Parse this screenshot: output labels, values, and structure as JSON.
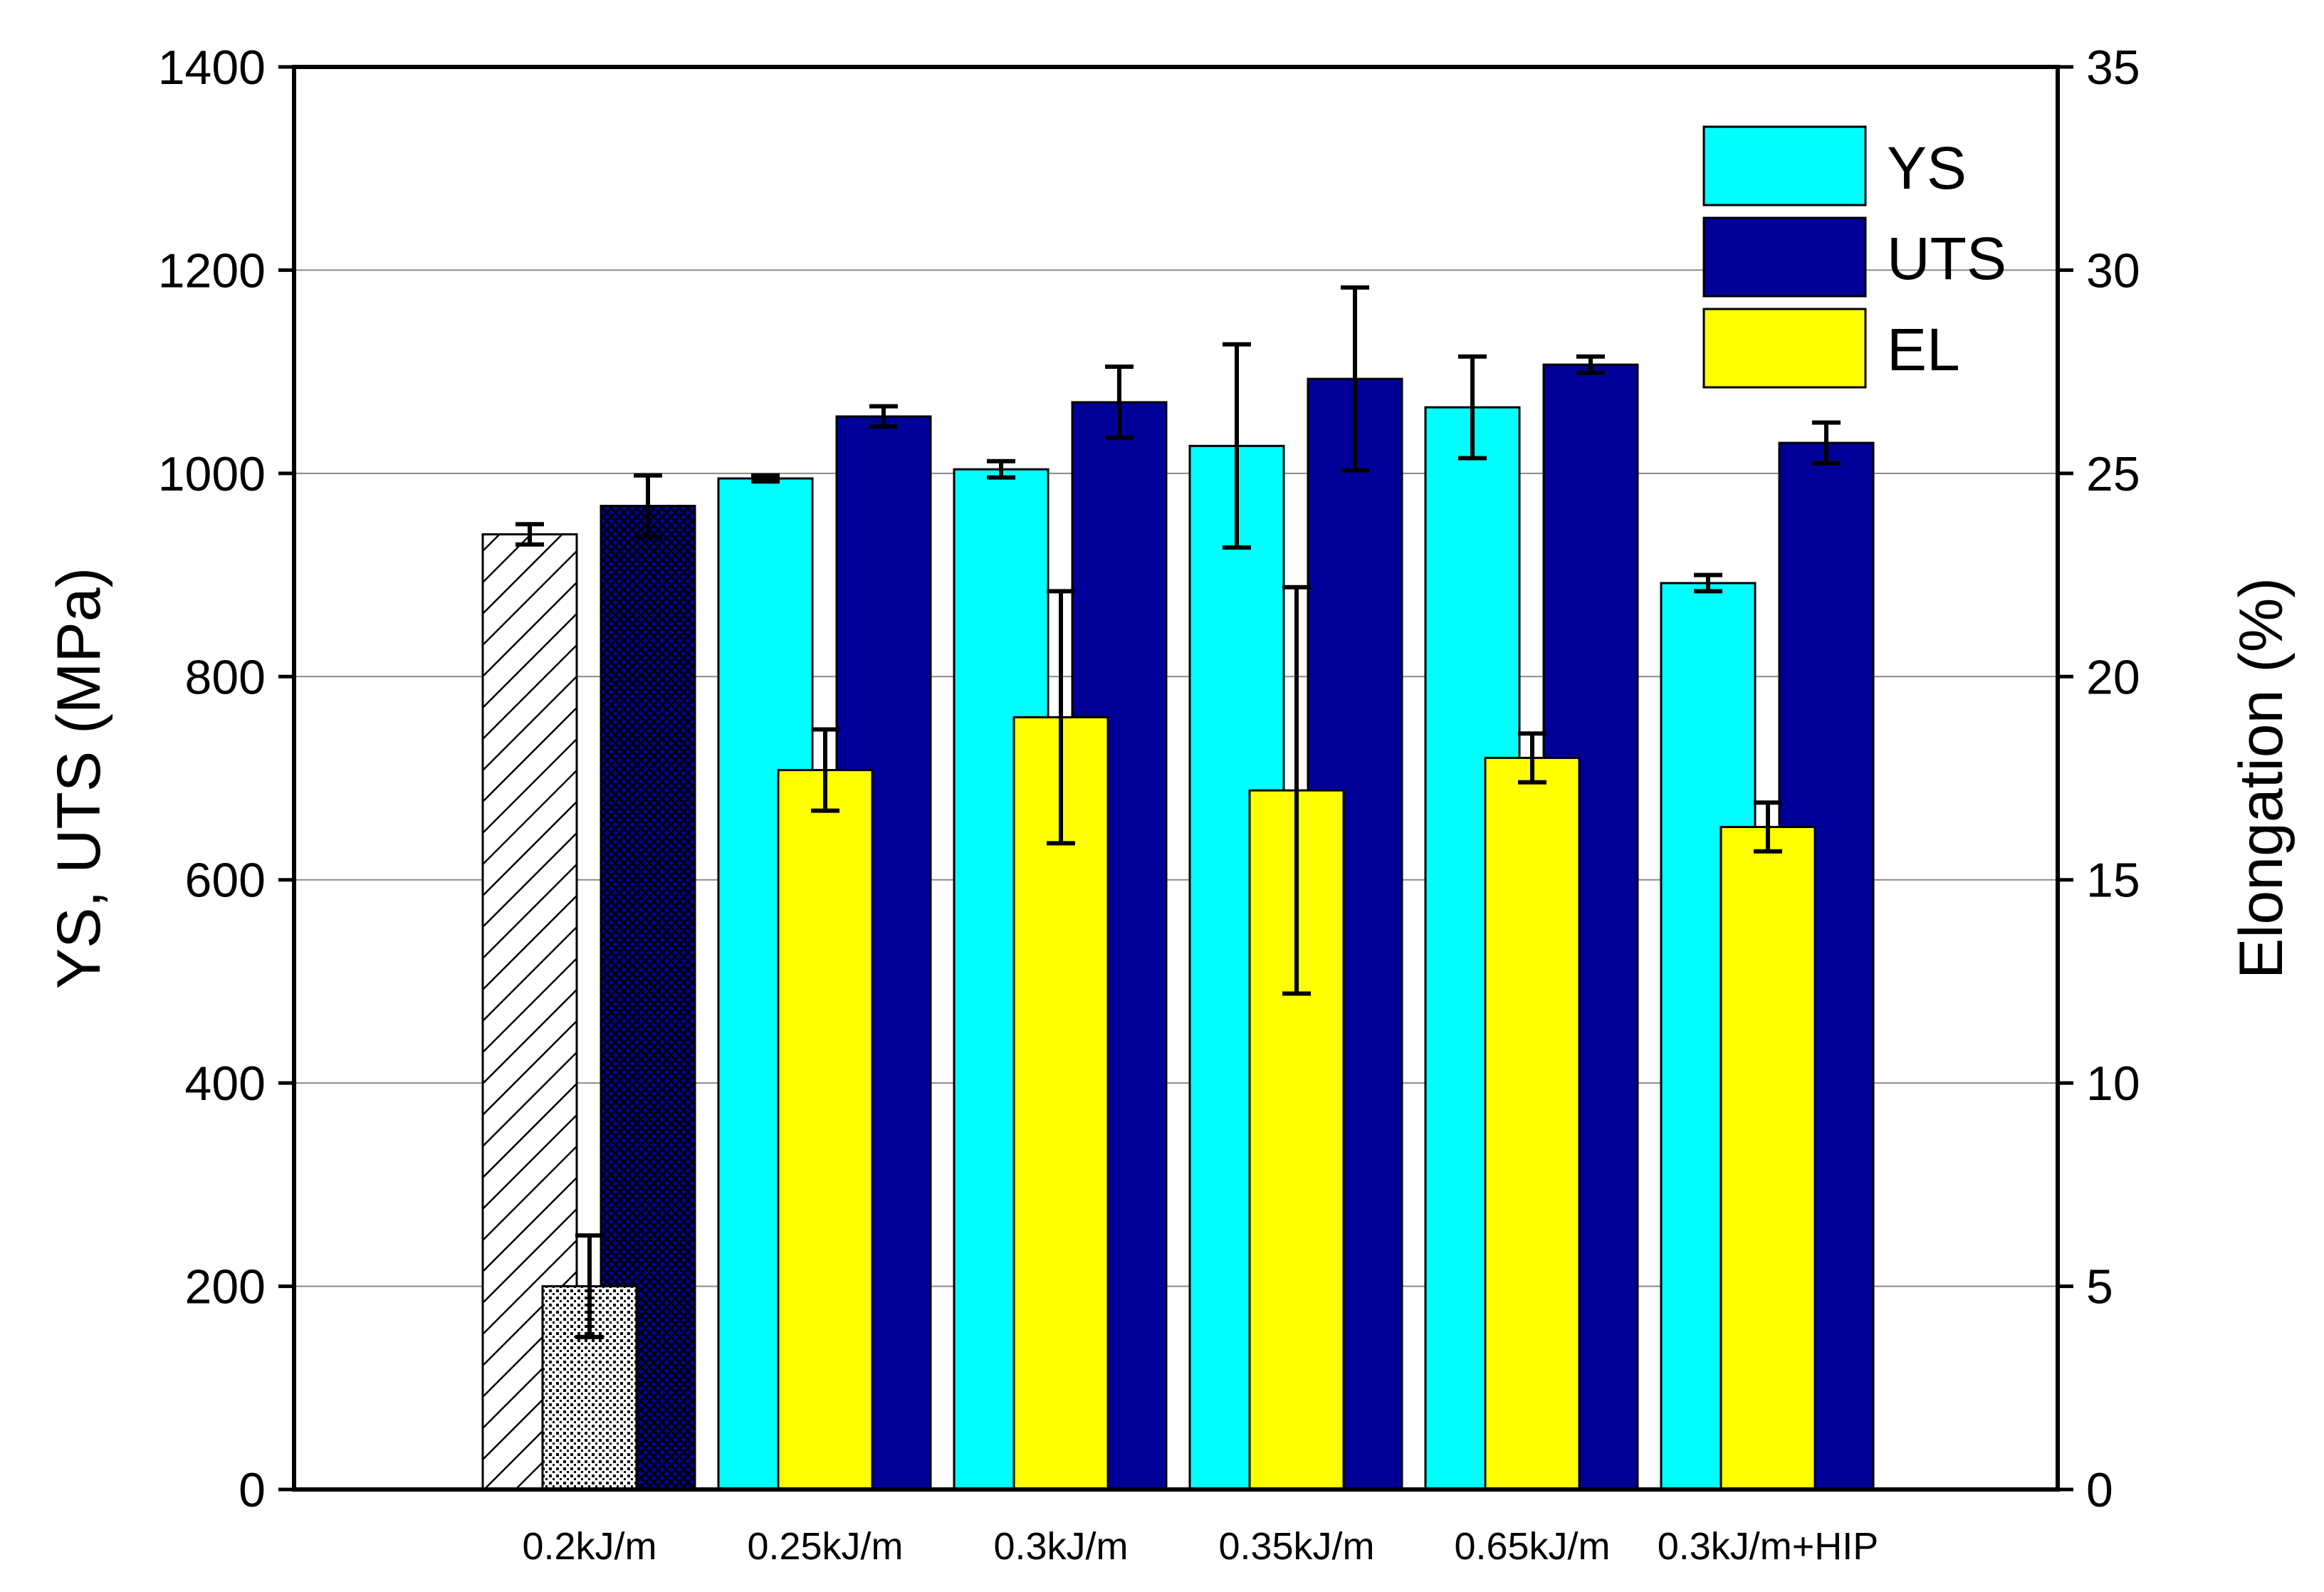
{
  "chart_data": {
    "type": "bar",
    "categories": [
      "0.2kJ/m",
      "0.25kJ/m",
      "0.3kJ/m",
      "0.35kJ/m",
      "0.65kJ/m",
      "0.3kJ/m+HIP"
    ],
    "series": [
      {
        "name": "YS",
        "axis": "left",
        "color": "#00FFFF",
        "values": [
          940,
          995,
          1004,
          1027,
          1065,
          892
        ],
        "errors": [
          10,
          3,
          8,
          100,
          50,
          8
        ]
      },
      {
        "name": "UTS",
        "axis": "left",
        "color": "#000099",
        "values": [
          968,
          1056,
          1070,
          1093,
          1107,
          1030
        ],
        "errors": [
          30,
          10,
          35,
          90,
          8,
          20
        ]
      },
      {
        "name": "EL",
        "axis": "right",
        "color": "#FFFF00",
        "values": [
          5.0,
          17.7,
          19.0,
          17.2,
          18.0,
          16.3
        ],
        "errors": [
          1.25,
          1.0,
          3.1,
          5.0,
          0.6,
          0.6
        ]
      }
    ],
    "first_category_pattern": "hatched (YS diagonal lines, EL dotted, UTS cross-hatched)",
    "ylabel_left": "YS, UTS (MPa)",
    "ylabel_right": "Elongation (%)",
    "ylim_left": [
      0,
      1400
    ],
    "ylim_right": [
      0,
      35
    ],
    "yticks_left": [
      0,
      200,
      400,
      600,
      800,
      1000,
      1200,
      1400
    ],
    "yticks_right": [
      0,
      5,
      10,
      15,
      20,
      25,
      30,
      35
    ],
    "grid": true,
    "legend": {
      "entries": [
        "YS",
        "UTS",
        "EL"
      ],
      "placement": "top-right"
    }
  }
}
